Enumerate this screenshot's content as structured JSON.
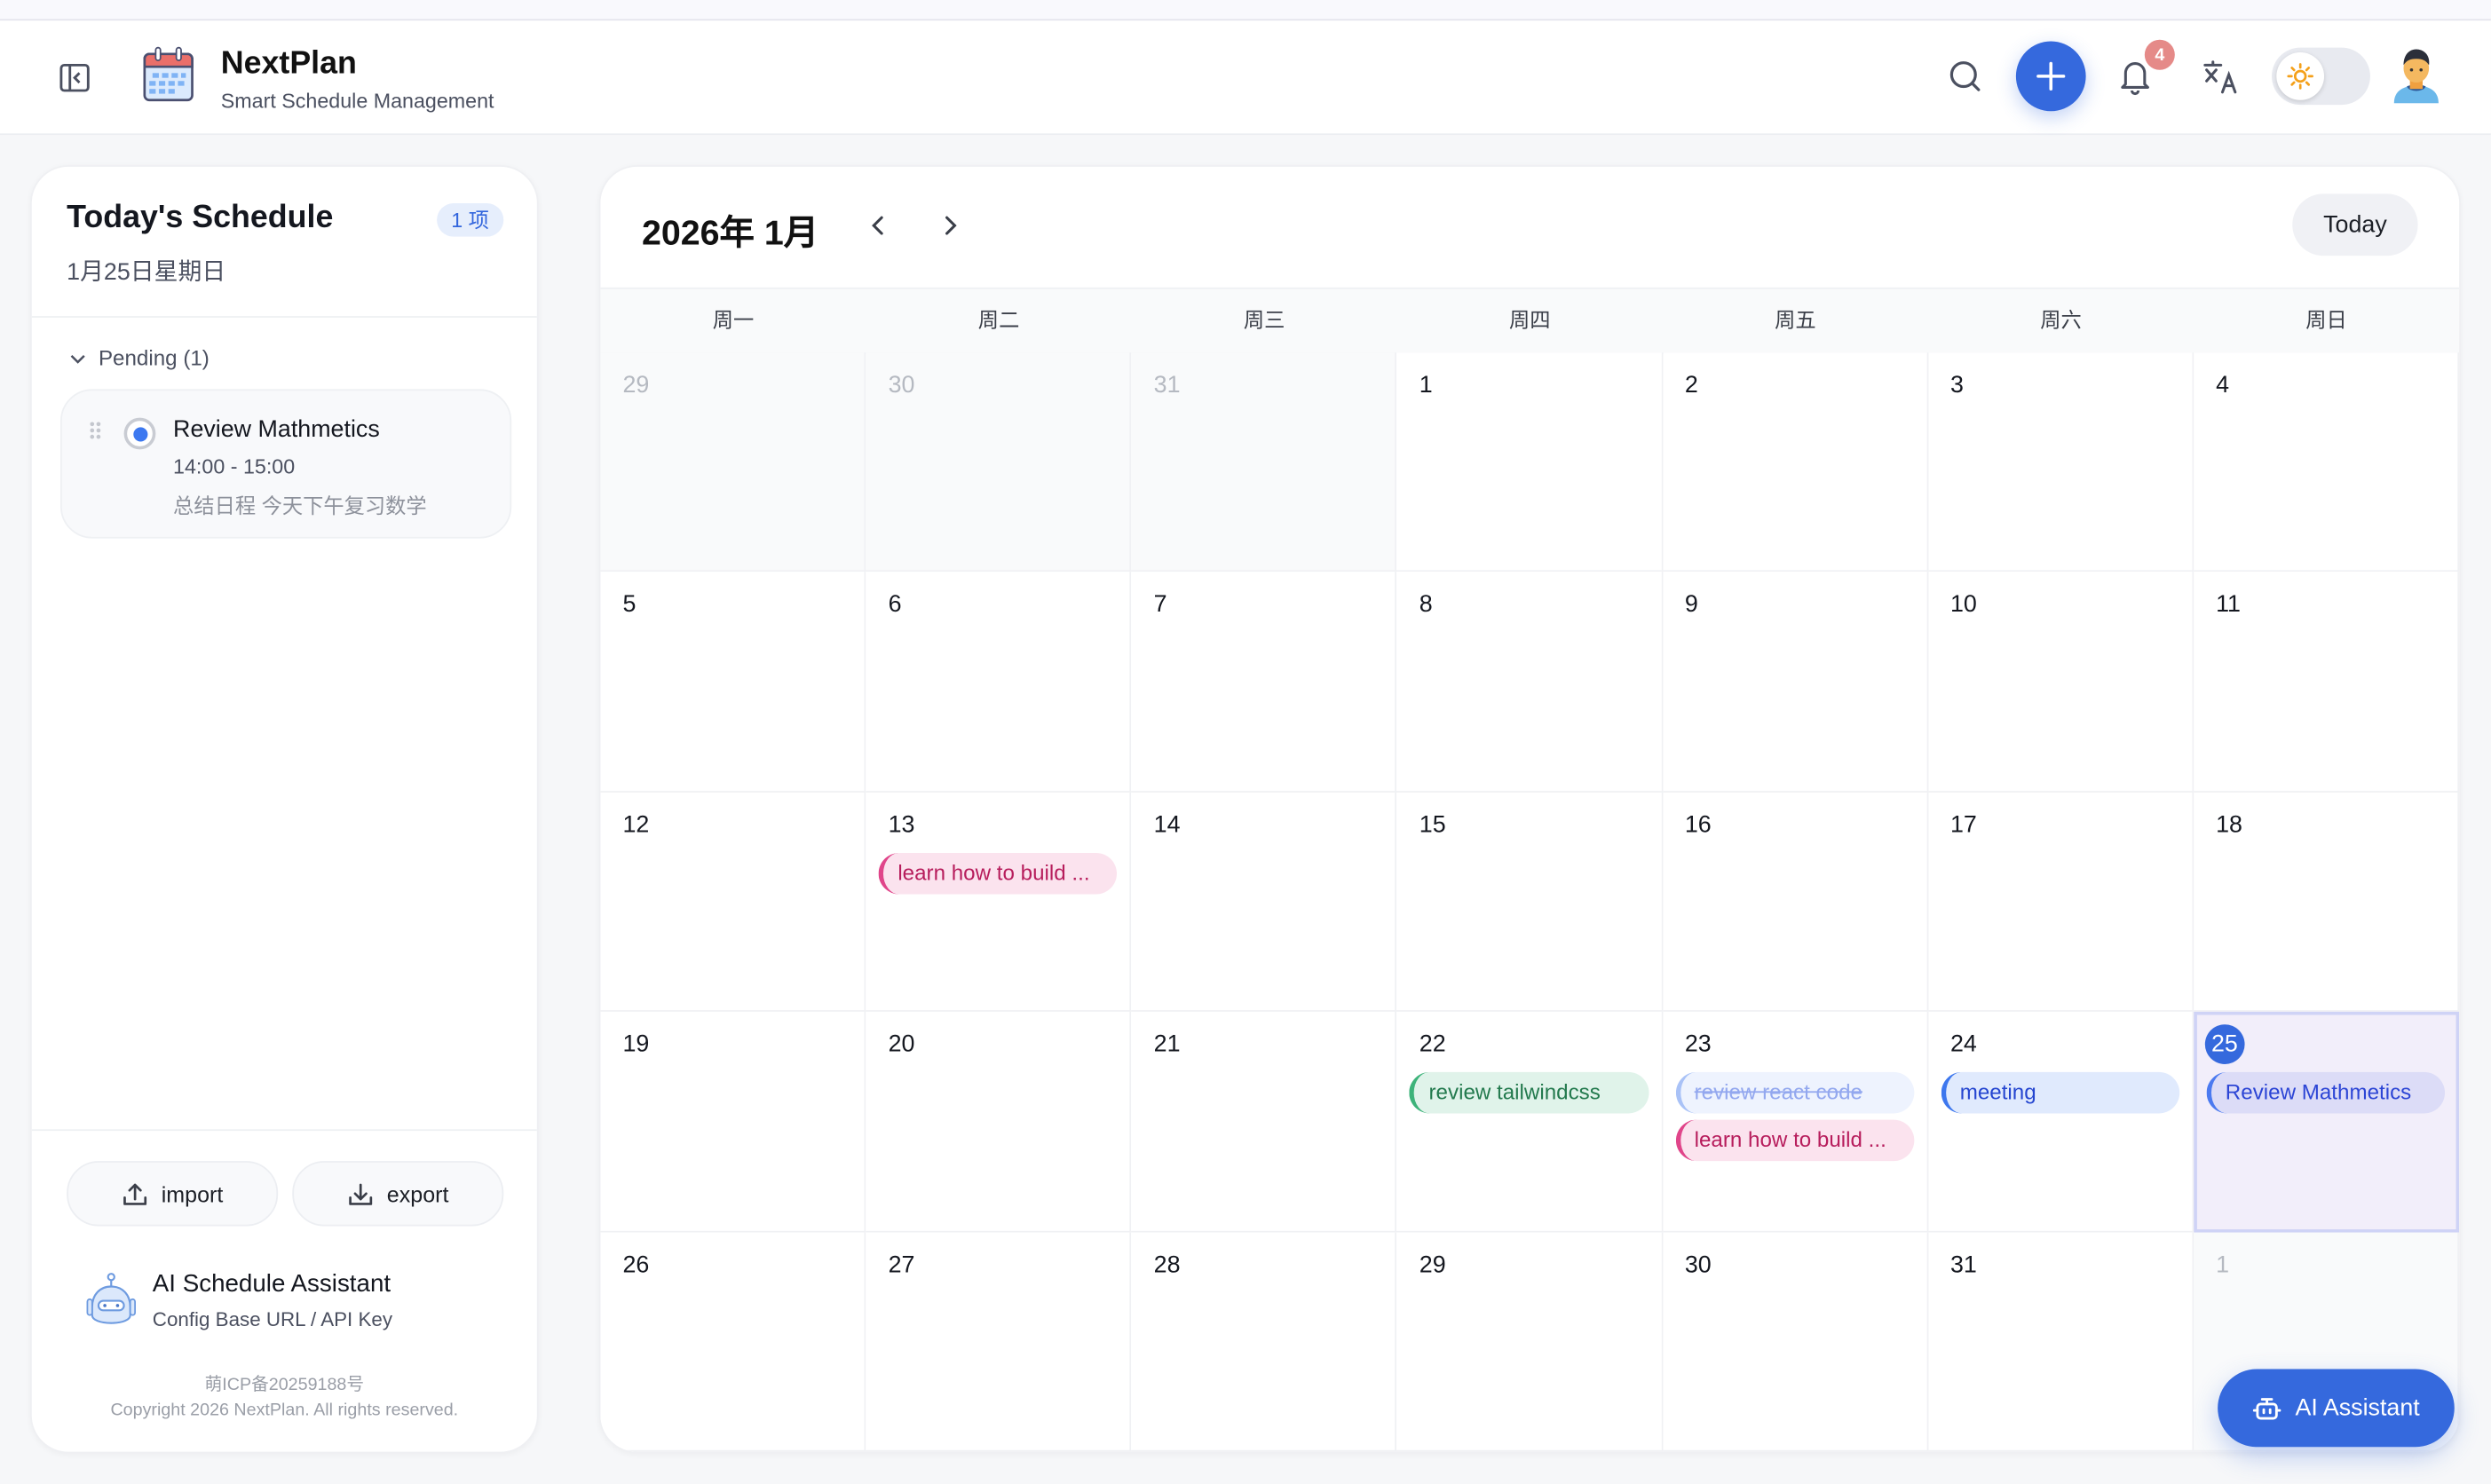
{
  "header": {
    "app_name": "NextPlan",
    "app_subtitle": "Smart Schedule Management",
    "notification_count": "4",
    "theme": "light",
    "accent_color": "#3569dd"
  },
  "sidebar": {
    "title": "Today's Schedule",
    "count_badge": "1 项",
    "date": "1月25日星期日",
    "group_label": "Pending (1)",
    "tasks": [
      {
        "title": "Review Mathmetics",
        "time": "14:00 - 15:00",
        "description": "总结日程 今天下午复习数学"
      }
    ],
    "import_label": "import",
    "export_label": "export",
    "ai_title": "AI Schedule Assistant",
    "ai_subtitle": "Config Base URL / API Key",
    "icp": "萌ICP备20259188号",
    "copyright": "Copyright 2026 NextPlan. All rights reserved."
  },
  "calendar": {
    "title": "2026年 1月",
    "today_label": "Today",
    "weekdays": [
      "周一",
      "周二",
      "周三",
      "周四",
      "周五",
      "周六",
      "周日"
    ],
    "days": [
      {
        "d": "29",
        "other": true
      },
      {
        "d": "30",
        "other": true
      },
      {
        "d": "31",
        "other": true
      },
      {
        "d": "1"
      },
      {
        "d": "2"
      },
      {
        "d": "3"
      },
      {
        "d": "4"
      },
      {
        "d": "5"
      },
      {
        "d": "6"
      },
      {
        "d": "7"
      },
      {
        "d": "8"
      },
      {
        "d": "9"
      },
      {
        "d": "10"
      },
      {
        "d": "11"
      },
      {
        "d": "12"
      },
      {
        "d": "13",
        "events": [
          {
            "title": "learn how to build ...",
            "color": "pink"
          }
        ]
      },
      {
        "d": "14"
      },
      {
        "d": "15"
      },
      {
        "d": "16"
      },
      {
        "d": "17"
      },
      {
        "d": "18"
      },
      {
        "d": "19"
      },
      {
        "d": "20"
      },
      {
        "d": "21"
      },
      {
        "d": "22",
        "events": [
          {
            "title": "review tailwindcss",
            "color": "green"
          }
        ]
      },
      {
        "d": "23",
        "events": [
          {
            "title": "review react code",
            "color": "lightblue",
            "done": true
          },
          {
            "title": "learn how to build ...",
            "color": "pink"
          }
        ]
      },
      {
        "d": "24",
        "events": [
          {
            "title": "meeting",
            "color": "blue"
          }
        ]
      },
      {
        "d": "25",
        "today": true,
        "events": [
          {
            "title": "Review Mathmetics",
            "color": "indigo"
          }
        ]
      },
      {
        "d": "26"
      },
      {
        "d": "27"
      },
      {
        "d": "28"
      },
      {
        "d": "29"
      },
      {
        "d": "30"
      },
      {
        "d": "31"
      },
      {
        "d": "1",
        "other": true
      }
    ],
    "event_colors": {
      "pink": {
        "bg": "#fbe3ee",
        "border": "#e0458a",
        "text": "#b71d5c"
      },
      "green": {
        "bg": "#e0f3ea",
        "border": "#3db37a",
        "text": "#237a4e"
      },
      "lightblue": {
        "bg": "#eef3fe",
        "border": "#a9c2f7",
        "text": "#93a8ef"
      },
      "blue": {
        "bg": "#e0eafd",
        "border": "#3d77ee",
        "text": "#2546d0"
      },
      "indigo": {
        "bg": "#dcdcf7",
        "border": "#4b7af0",
        "text": "#2c45d5"
      }
    }
  },
  "ai_button_label": "AI Assistant"
}
